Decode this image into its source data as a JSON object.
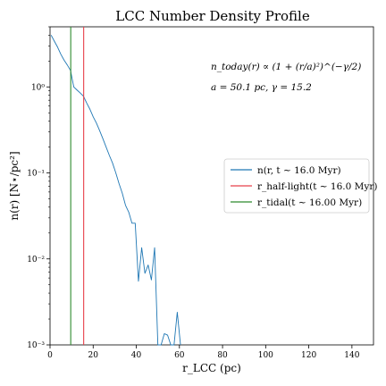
{
  "chart_data": {
    "type": "line",
    "title": "LCC Number Density Profile",
    "xlabel": "r_LCC (pc)",
    "ylabel": "n(r)  [N⋆/pc²]",
    "xlim": [
      0,
      150
    ],
    "ylim": [
      0.001,
      5
    ],
    "yscale": "log",
    "grid": false,
    "legend_position": "center-right",
    "x_ticks": [
      0,
      20,
      40,
      60,
      80,
      100,
      120,
      140
    ],
    "y_ticks": [
      {
        "value": 0.001,
        "label": "10⁻³"
      },
      {
        "value": 0.01,
        "label": "10⁻²"
      },
      {
        "value": 0.1,
        "label": "10⁻¹"
      },
      {
        "value": 1,
        "label": "10⁰"
      }
    ],
    "annotations": [
      "n_today(r) ∝ (1 + (r/a)²)^(−γ/2)",
      "a = 50.1 pc, γ = 15.2"
    ],
    "series": [
      {
        "name": "n(r, t ∼ 16.0 Myr)",
        "color": "#1f77b4",
        "x": [
          0.5,
          2,
          3.5,
          5,
          6.5,
          8,
          9.5,
          11,
          12.5,
          14,
          15.5,
          17,
          18.5,
          20,
          21.5,
          23,
          24.5,
          26,
          27.5,
          29,
          30.5,
          32,
          33.5,
          35,
          36.5,
          38,
          39.5,
          41,
          42.5,
          44,
          45.5,
          47,
          48.5,
          50,
          51.5,
          53,
          54.5,
          56,
          57.5,
          59,
          60.5
        ],
        "y": [
          4.0,
          3.4,
          2.9,
          2.4,
          2.05,
          1.8,
          1.55,
          1.0,
          0.92,
          0.85,
          0.78,
          0.65,
          0.55,
          0.45,
          0.38,
          0.31,
          0.25,
          0.2,
          0.16,
          0.13,
          0.1,
          0.075,
          0.058,
          0.042,
          0.035,
          0.026,
          0.026,
          0.0055,
          0.0135,
          0.0068,
          0.0085,
          0.0057,
          0.0135,
          0.001,
          0.001,
          0.00135,
          0.0013,
          0.001,
          0.001,
          0.0024,
          0.001
        ]
      },
      {
        "name": "r_half-light(t ∼ 16.0 Myr)",
        "color": "#e8404a",
        "vline": 15.6
      },
      {
        "name": "r_tidal(t ∼ 16.00 Myr)",
        "color": "#2e8b2e",
        "vline": 9.6
      }
    ]
  }
}
